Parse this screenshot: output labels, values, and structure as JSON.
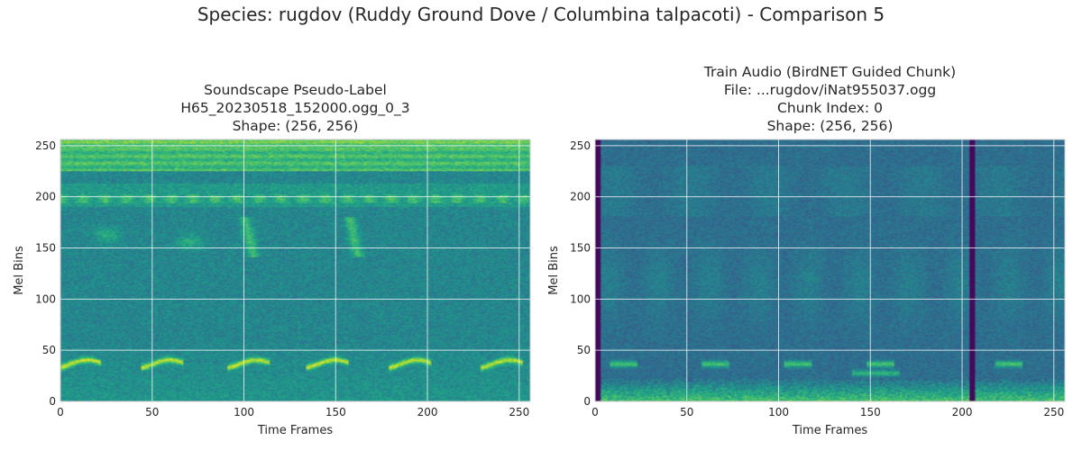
{
  "figure": {
    "suptitle": "Species: rugdov (Ruddy Ground Dove / Columbina talpacoti) - Comparison 5"
  },
  "chart_data": [
    {
      "type": "heatmap",
      "title_lines": [
        "Soundscape Pseudo-Label",
        "H65_20230518_152000.ogg_0_3",
        "Shape: (256, 256)"
      ],
      "xlabel": "Time Frames",
      "ylabel": "Mel Bins",
      "xlim": [
        0,
        256
      ],
      "ylim": [
        0,
        256
      ],
      "xticks": [
        0,
        50,
        100,
        150,
        200,
        250
      ],
      "yticks": [
        0,
        50,
        100,
        150,
        200,
        250
      ],
      "grid": true,
      "colormap": "viridis",
      "shape": [
        256,
        256
      ],
      "features": {
        "top_band_bins": [
          225,
          256
        ],
        "mid_band_bins": [
          190,
          212
        ],
        "call_bin": 36,
        "call_frames": [
          5,
          50,
          97,
          140,
          185,
          235
        ],
        "tall_notes_frames": [
          100,
          157
        ],
        "blobs": [
          [
            25,
            162
          ],
          [
            70,
            155
          ]
        ]
      }
    },
    {
      "type": "heatmap",
      "title_lines": [
        "Train Audio (BirdNET Guided Chunk)",
        "File: ...rugdov/iNat955037.ogg",
        "Chunk Index: 0",
        "Shape: (256, 256)"
      ],
      "xlabel": "Time Frames",
      "ylabel": "Mel Bins",
      "xlim": [
        0,
        256
      ],
      "ylim": [
        0,
        256
      ],
      "xticks": [
        0,
        50,
        100,
        150,
        200,
        250
      ],
      "yticks": [
        0,
        50,
        100,
        150,
        200,
        250
      ],
      "grid": true,
      "colormap": "viridis",
      "shape": [
        256,
        256
      ],
      "features": {
        "dark_columns_frames": [
          1,
          205
        ],
        "low_energy_bins": [
          0,
          14
        ],
        "call_bin": 36,
        "call_frames": [
          15,
          65,
          110,
          155,
          225
        ],
        "extra_call": [
          140,
          165,
          27
        ]
      }
    }
  ],
  "colors": {
    "grid": "#ffffff",
    "spine": "#cccccc",
    "text": "#262626"
  }
}
